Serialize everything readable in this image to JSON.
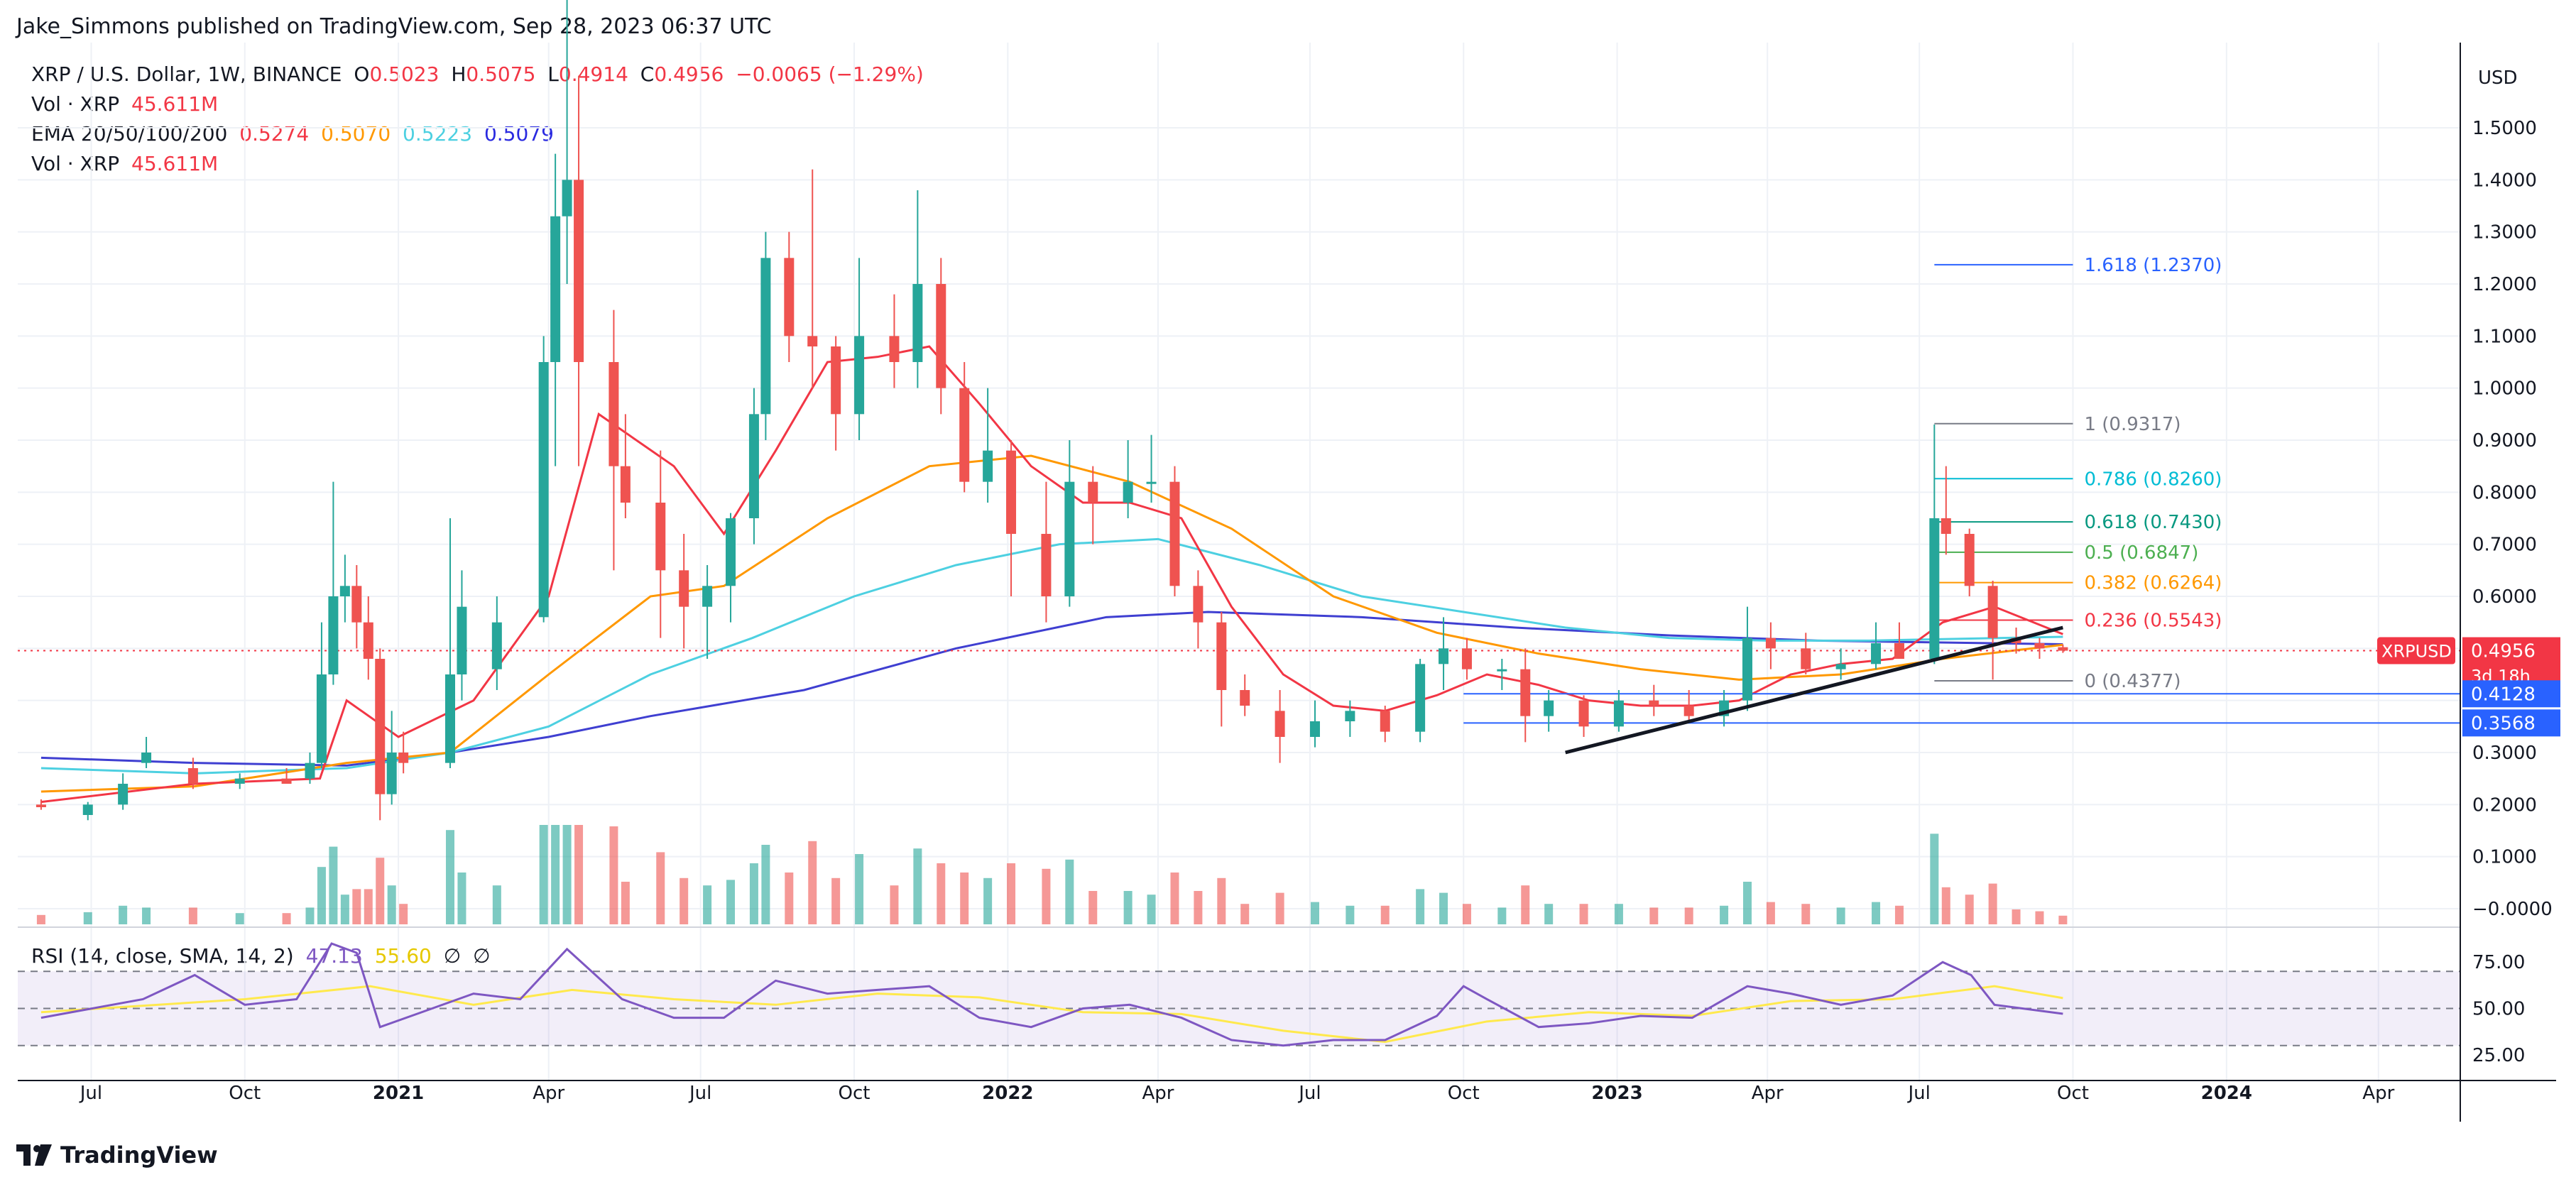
{
  "header": {
    "published_line": "Jake_Simmons published on TradingView.com, Sep 28, 2023 06:37 UTC"
  },
  "legend": {
    "symbol": "XRP / U.S. Dollar, 1W, BINANCE",
    "open_label": "O",
    "open": "0.5023",
    "high_label": "H",
    "high": "0.5075",
    "low_label": "L",
    "low": "0.4914",
    "close_label": "C",
    "close": "0.4956",
    "change": "−0.0065 (−1.29%)",
    "vol1_label": "Vol · XRP",
    "vol1_value": "45.611M",
    "ema_label": "EMA 20/50/100/200",
    "ema20": "0.5274",
    "ema50": "0.5070",
    "ema100": "0.5223",
    "ema200": "0.5079",
    "vol2_label": "Vol · XRP",
    "vol2_value": "45.611M",
    "rsi_label": "RSI (14, close, SMA, 14, 2)",
    "rsi_value": "47.13",
    "rsi_sma": "55.60",
    "rsi_sym1": "∅",
    "rsi_sym2": "∅"
  },
  "price_axis": {
    "currency": "USD",
    "ticks": [
      "1.5000",
      "1.4000",
      "1.3000",
      "1.2000",
      "1.1000",
      "1.0000",
      "0.9000",
      "0.8000",
      "0.7000",
      "0.6000",
      "0.5000",
      "0.4000",
      "0.3000",
      "0.2000",
      "0.1000",
      "−0.0000"
    ],
    "current_symbol": "XRPUSD",
    "current_price": "0.4956",
    "countdown": "3d 18h",
    "level1": "0.4128",
    "level2": "0.3568"
  },
  "rsi_axis": {
    "ticks": [
      "75.00",
      "50.00",
      "25.00"
    ]
  },
  "time_axis": {
    "ticks": [
      "Jul",
      "Oct",
      "2021",
      "Apr",
      "Jul",
      "Oct",
      "2022",
      "Apr",
      "Jul",
      "Oct",
      "2023",
      "Apr",
      "Jul",
      "Oct",
      "2024",
      "Apr"
    ]
  },
  "fib_levels": [
    {
      "label": "1.618 (1.2370)",
      "value": 1.237,
      "color": "#2962ff"
    },
    {
      "label": "1 (0.9317)",
      "value": 0.9317,
      "color": "#787b86"
    },
    {
      "label": "0.786 (0.8260)",
      "value": 0.826,
      "color": "#00bcd4"
    },
    {
      "label": "0.618 (0.7430)",
      "value": 0.743,
      "color": "#089981"
    },
    {
      "label": "0.5 (0.6847)",
      "value": 0.6847,
      "color": "#4caf50"
    },
    {
      "label": "0.382 (0.6264)",
      "value": 0.6264,
      "color": "#ff9800"
    },
    {
      "label": "0.236 (0.5543)",
      "value": 0.5543,
      "color": "#f23645"
    },
    {
      "label": "0 (0.4377)",
      "value": 0.4377,
      "color": "#787b86"
    }
  ],
  "colors": {
    "up": "#26a69a",
    "down": "#ef5350",
    "ema20": "#f23645",
    "ema50": "#ff9800",
    "ema100": "#4dd0e1",
    "ema200": "#3f3fd1",
    "rsi": "#7e57c2",
    "rsi_sma": "#ffe94d",
    "axis_badge": "#2962ff",
    "price_badge": "#f23645"
  },
  "brand": {
    "name": "TradingView"
  },
  "chart_data": {
    "type": "candlestick",
    "timeframe": "1W",
    "ylim": [
      -0.03,
      1.65
    ],
    "rsi_ylim": [
      15,
      90
    ],
    "candles": [
      [
        "2020-06-01",
        0.2,
        0.21,
        0.19,
        0.195
      ],
      [
        "2020-06-29",
        0.18,
        0.205,
        0.17,
        0.2
      ],
      [
        "2020-07-20",
        0.2,
        0.26,
        0.19,
        0.24
      ],
      [
        "2020-08-03",
        0.28,
        0.33,
        0.27,
        0.3
      ],
      [
        "2020-08-31",
        0.27,
        0.29,
        0.23,
        0.24
      ],
      [
        "2020-09-28",
        0.24,
        0.26,
        0.23,
        0.25
      ],
      [
        "2020-10-26",
        0.25,
        0.27,
        0.24,
        0.24
      ],
      [
        "2020-11-09",
        0.25,
        0.3,
        0.24,
        0.28
      ],
      [
        "2020-11-16",
        0.28,
        0.55,
        0.27,
        0.45
      ],
      [
        "2020-11-23",
        0.45,
        0.82,
        0.43,
        0.6
      ],
      [
        "2020-11-30",
        0.6,
        0.68,
        0.55,
        0.62
      ],
      [
        "2020-12-07",
        0.62,
        0.66,
        0.5,
        0.55
      ],
      [
        "2020-12-14",
        0.55,
        0.6,
        0.44,
        0.48
      ],
      [
        "2020-12-21",
        0.48,
        0.5,
        0.17,
        0.22
      ],
      [
        "2020-12-28",
        0.22,
        0.38,
        0.2,
        0.3
      ],
      [
        "2021-01-04",
        0.3,
        0.34,
        0.26,
        0.28
      ],
      [
        "2021-02-01",
        0.28,
        0.75,
        0.27,
        0.45
      ],
      [
        "2021-02-08",
        0.45,
        0.65,
        0.4,
        0.58
      ],
      [
        "2021-03-01",
        0.46,
        0.6,
        0.42,
        0.55
      ],
      [
        "2021-03-29",
        0.56,
        1.1,
        0.55,
        1.05
      ],
      [
        "2021-04-05",
        1.05,
        1.45,
        0.85,
        1.33
      ],
      [
        "2021-04-12",
        1.33,
        1.75,
        1.2,
        1.4
      ],
      [
        "2021-04-19",
        1.4,
        1.6,
        0.85,
        1.05
      ],
      [
        "2021-05-10",
        1.05,
        1.15,
        0.65,
        0.85
      ],
      [
        "2021-05-17",
        0.85,
        0.95,
        0.75,
        0.78
      ],
      [
        "2021-06-07",
        0.78,
        0.88,
        0.52,
        0.65
      ],
      [
        "2021-06-21",
        0.65,
        0.72,
        0.5,
        0.58
      ],
      [
        "2021-07-05",
        0.58,
        0.66,
        0.48,
        0.62
      ],
      [
        "2021-07-19",
        0.62,
        0.76,
        0.55,
        0.75
      ],
      [
        "2021-08-02",
        0.75,
        1.0,
        0.7,
        0.95
      ],
      [
        "2021-08-09",
        0.95,
        1.3,
        0.9,
        1.25
      ],
      [
        "2021-08-23",
        1.25,
        1.3,
        1.05,
        1.1
      ],
      [
        "2021-09-06",
        1.1,
        1.42,
        1.0,
        1.08
      ],
      [
        "2021-09-20",
        1.08,
        1.1,
        0.88,
        0.95
      ],
      [
        "2021-10-04",
        0.95,
        1.25,
        0.9,
        1.1
      ],
      [
        "2021-10-25",
        1.1,
        1.18,
        1.0,
        1.05
      ],
      [
        "2021-11-08",
        1.05,
        1.38,
        1.0,
        1.2
      ],
      [
        "2021-11-22",
        1.2,
        1.25,
        0.95,
        1.0
      ],
      [
        "2021-12-06",
        1.0,
        1.05,
        0.8,
        0.82
      ],
      [
        "2021-12-20",
        0.82,
        1.0,
        0.78,
        0.88
      ],
      [
        "2022-01-03",
        0.88,
        0.9,
        0.6,
        0.72
      ],
      [
        "2022-01-24",
        0.72,
        0.82,
        0.55,
        0.6
      ],
      [
        "2022-02-07",
        0.6,
        0.9,
        0.58,
        0.82
      ],
      [
        "2022-02-21",
        0.82,
        0.85,
        0.7,
        0.78
      ],
      [
        "2022-03-14",
        0.78,
        0.9,
        0.75,
        0.82
      ],
      [
        "2022-03-28",
        0.82,
        0.91,
        0.78,
        0.82
      ],
      [
        "2022-04-11",
        0.82,
        0.85,
        0.6,
        0.62
      ],
      [
        "2022-04-25",
        0.62,
        0.65,
        0.5,
        0.55
      ],
      [
        "2022-05-09",
        0.55,
        0.57,
        0.35,
        0.42
      ],
      [
        "2022-05-23",
        0.42,
        0.45,
        0.37,
        0.39
      ],
      [
        "2022-06-13",
        0.38,
        0.42,
        0.28,
        0.33
      ],
      [
        "2022-07-04",
        0.33,
        0.4,
        0.31,
        0.36
      ],
      [
        "2022-07-25",
        0.36,
        0.4,
        0.33,
        0.38
      ],
      [
        "2022-08-15",
        0.38,
        0.39,
        0.32,
        0.34
      ],
      [
        "2022-09-05",
        0.34,
        0.48,
        0.32,
        0.47
      ],
      [
        "2022-09-19",
        0.47,
        0.56,
        0.42,
        0.5
      ],
      [
        "2022-10-03",
        0.5,
        0.52,
        0.44,
        0.46
      ],
      [
        "2022-10-24",
        0.46,
        0.48,
        0.42,
        0.46
      ],
      [
        "2022-11-07",
        0.46,
        0.5,
        0.32,
        0.37
      ],
      [
        "2022-11-21",
        0.37,
        0.42,
        0.34,
        0.4
      ],
      [
        "2022-12-12",
        0.4,
        0.41,
        0.33,
        0.35
      ],
      [
        "2023-01-02",
        0.35,
        0.42,
        0.34,
        0.4
      ],
      [
        "2023-01-23",
        0.4,
        0.43,
        0.37,
        0.39
      ],
      [
        "2023-02-13",
        0.39,
        0.42,
        0.36,
        0.37
      ],
      [
        "2023-03-06",
        0.37,
        0.42,
        0.35,
        0.4
      ],
      [
        "2023-03-20",
        0.4,
        0.58,
        0.38,
        0.52
      ],
      [
        "2023-04-03",
        0.52,
        0.55,
        0.46,
        0.5
      ],
      [
        "2023-04-24",
        0.5,
        0.53,
        0.45,
        0.46
      ],
      [
        "2023-05-15",
        0.46,
        0.5,
        0.44,
        0.47
      ],
      [
        "2023-06-05",
        0.47,
        0.55,
        0.46,
        0.51
      ],
      [
        "2023-06-19",
        0.51,
        0.55,
        0.48,
        0.48
      ],
      [
        "2023-07-10",
        0.48,
        0.93,
        0.47,
        0.75
      ],
      [
        "2023-07-17",
        0.75,
        0.85,
        0.68,
        0.72
      ],
      [
        "2023-07-31",
        0.72,
        0.73,
        0.6,
        0.62
      ],
      [
        "2023-08-14",
        0.62,
        0.63,
        0.44,
        0.52
      ],
      [
        "2023-08-28",
        0.52,
        0.54,
        0.49,
        0.51
      ],
      [
        "2023-09-11",
        0.51,
        0.52,
        0.48,
        0.5
      ],
      [
        "2023-09-25",
        0.5023,
        0.5075,
        0.4914,
        0.4956
      ]
    ],
    "ema20": [
      [
        "2020-06-01",
        0.205
      ],
      [
        "2020-09-01",
        0.24
      ],
      [
        "2020-11-15",
        0.25
      ],
      [
        "2020-12-01",
        0.4
      ],
      [
        "2021-01-01",
        0.33
      ],
      [
        "2021-02-15",
        0.4
      ],
      [
        "2021-04-01",
        0.6
      ],
      [
        "2021-05-01",
        0.95
      ],
      [
        "2021-06-15",
        0.85
      ],
      [
        "2021-07-15",
        0.72
      ],
      [
        "2021-08-15",
        0.88
      ],
      [
        "2021-09-15",
        1.05
      ],
      [
        "2021-10-15",
        1.06
      ],
      [
        "2021-11-15",
        1.08
      ],
      [
        "2021-12-15",
        0.97
      ],
      [
        "2022-01-15",
        0.85
      ],
      [
        "2022-02-15",
        0.78
      ],
      [
        "2022-03-15",
        0.78
      ],
      [
        "2022-04-15",
        0.75
      ],
      [
        "2022-05-15",
        0.58
      ],
      [
        "2022-06-15",
        0.45
      ],
      [
        "2022-07-15",
        0.39
      ],
      [
        "2022-08-15",
        0.38
      ],
      [
        "2022-09-15",
        0.41
      ],
      [
        "2022-10-15",
        0.45
      ],
      [
        "2022-11-15",
        0.43
      ],
      [
        "2022-12-15",
        0.4
      ],
      [
        "2023-01-15",
        0.39
      ],
      [
        "2023-02-15",
        0.39
      ],
      [
        "2023-03-15",
        0.4
      ],
      [
        "2023-04-15",
        0.45
      ],
      [
        "2023-05-15",
        0.47
      ],
      [
        "2023-06-15",
        0.48
      ],
      [
        "2023-07-15",
        0.55
      ],
      [
        "2023-08-15",
        0.58
      ],
      [
        "2023-09-25",
        0.5274
      ]
    ],
    "ema50": [
      [
        "2020-06-01",
        0.225
      ],
      [
        "2020-09-01",
        0.235
      ],
      [
        "2020-12-01",
        0.28
      ],
      [
        "2021-02-01",
        0.3
      ],
      [
        "2021-04-01",
        0.45
      ],
      [
        "2021-06-01",
        0.6
      ],
      [
        "2021-07-15",
        0.62
      ],
      [
        "2021-09-15",
        0.75
      ],
      [
        "2021-11-15",
        0.85
      ],
      [
        "2022-01-15",
        0.87
      ],
      [
        "2022-03-15",
        0.82
      ],
      [
        "2022-05-15",
        0.73
      ],
      [
        "2022-07-15",
        0.6
      ],
      [
        "2022-09-15",
        0.53
      ],
      [
        "2022-11-15",
        0.49
      ],
      [
        "2023-01-15",
        0.46
      ],
      [
        "2023-03-15",
        0.44
      ],
      [
        "2023-05-15",
        0.45
      ],
      [
        "2023-07-15",
        0.48
      ],
      [
        "2023-09-25",
        0.507
      ]
    ],
    "ema100": [
      [
        "2020-06-01",
        0.27
      ],
      [
        "2020-09-01",
        0.26
      ],
      [
        "2020-12-01",
        0.27
      ],
      [
        "2021-02-01",
        0.3
      ],
      [
        "2021-04-01",
        0.35
      ],
      [
        "2021-06-01",
        0.45
      ],
      [
        "2021-08-01",
        0.52
      ],
      [
        "2021-10-01",
        0.6
      ],
      [
        "2021-12-01",
        0.66
      ],
      [
        "2022-02-01",
        0.7
      ],
      [
        "2022-04-01",
        0.71
      ],
      [
        "2022-06-01",
        0.66
      ],
      [
        "2022-08-01",
        0.6
      ],
      [
        "2022-10-01",
        0.57
      ],
      [
        "2022-12-01",
        0.54
      ],
      [
        "2023-02-01",
        0.52
      ],
      [
        "2023-04-01",
        0.515
      ],
      [
        "2023-06-01",
        0.515
      ],
      [
        "2023-09-25",
        0.5223
      ]
    ],
    "ema200": [
      [
        "2020-06-01",
        0.29
      ],
      [
        "2020-09-01",
        0.28
      ],
      [
        "2020-12-01",
        0.275
      ],
      [
        "2021-02-01",
        0.3
      ],
      [
        "2021-04-01",
        0.33
      ],
      [
        "2021-06-01",
        0.37
      ],
      [
        "2021-09-01",
        0.42
      ],
      [
        "2021-12-01",
        0.5
      ],
      [
        "2022-03-01",
        0.56
      ],
      [
        "2022-05-01",
        0.57
      ],
      [
        "2022-08-01",
        0.56
      ],
      [
        "2022-11-01",
        0.54
      ],
      [
        "2023-02-01",
        0.525
      ],
      [
        "2023-05-01",
        0.515
      ],
      [
        "2023-09-25",
        0.5079
      ]
    ],
    "rsi": [
      [
        "2020-06-01",
        45
      ],
      [
        "2020-08-01",
        55
      ],
      [
        "2020-09-01",
        68
      ],
      [
        "2020-10-01",
        52
      ],
      [
        "2020-11-01",
        55
      ],
      [
        "2020-11-22",
        85
      ],
      [
        "2020-12-07",
        80
      ],
      [
        "2020-12-21",
        40
      ],
      [
        "2021-01-15",
        48
      ],
      [
        "2021-02-15",
        58
      ],
      [
        "2021-03-15",
        55
      ],
      [
        "2021-04-12",
        82
      ],
      [
        "2021-05-15",
        55
      ],
      [
        "2021-06-15",
        45
      ],
      [
        "2021-07-15",
        45
      ],
      [
        "2021-08-15",
        65
      ],
      [
        "2021-09-15",
        58
      ],
      [
        "2021-10-15",
        60
      ],
      [
        "2021-11-15",
        62
      ],
      [
        "2021-12-15",
        45
      ],
      [
        "2022-01-15",
        40
      ],
      [
        "2022-02-15",
        50
      ],
      [
        "2022-03-15",
        52
      ],
      [
        "2022-04-15",
        45
      ],
      [
        "2022-05-15",
        33
      ],
      [
        "2022-06-15",
        30
      ],
      [
        "2022-07-15",
        33
      ],
      [
        "2022-08-15",
        33
      ],
      [
        "2022-09-15",
        46
      ],
      [
        "2022-10-01",
        62
      ],
      [
        "2022-10-15",
        55
      ],
      [
        "2022-11-15",
        40
      ],
      [
        "2022-12-15",
        42
      ],
      [
        "2023-01-15",
        46
      ],
      [
        "2023-02-15",
        45
      ],
      [
        "2023-03-20",
        62
      ],
      [
        "2023-04-15",
        58
      ],
      [
        "2023-05-15",
        52
      ],
      [
        "2023-06-15",
        57
      ],
      [
        "2023-07-15",
        75
      ],
      [
        "2023-08-01",
        68
      ],
      [
        "2023-08-15",
        52
      ],
      [
        "2023-09-25",
        47.13
      ]
    ],
    "rsi_sma": [
      [
        "2020-06-01",
        48
      ],
      [
        "2020-10-01",
        55
      ],
      [
        "2020-12-15",
        62
      ],
      [
        "2021-02-15",
        52
      ],
      [
        "2021-04-15",
        60
      ],
      [
        "2021-06-15",
        55
      ],
      [
        "2021-08-15",
        52
      ],
      [
        "2021-10-15",
        58
      ],
      [
        "2021-12-15",
        56
      ],
      [
        "2022-02-15",
        48
      ],
      [
        "2022-04-15",
        47
      ],
      [
        "2022-06-15",
        38
      ],
      [
        "2022-08-15",
        32
      ],
      [
        "2022-10-15",
        43
      ],
      [
        "2022-12-15",
        48
      ],
      [
        "2023-02-15",
        46
      ],
      [
        "2023-04-15",
        54
      ],
      [
        "2023-06-15",
        55
      ],
      [
        "2023-08-15",
        62
      ],
      [
        "2023-09-25",
        55.6
      ]
    ],
    "trendline": [
      [
        "2022-12-01",
        0.3
      ],
      [
        "2023-09-25",
        0.54
      ]
    ],
    "horizontal_levels": [
      0.4128,
      0.3568
    ],
    "current_price": 0.4956
  }
}
